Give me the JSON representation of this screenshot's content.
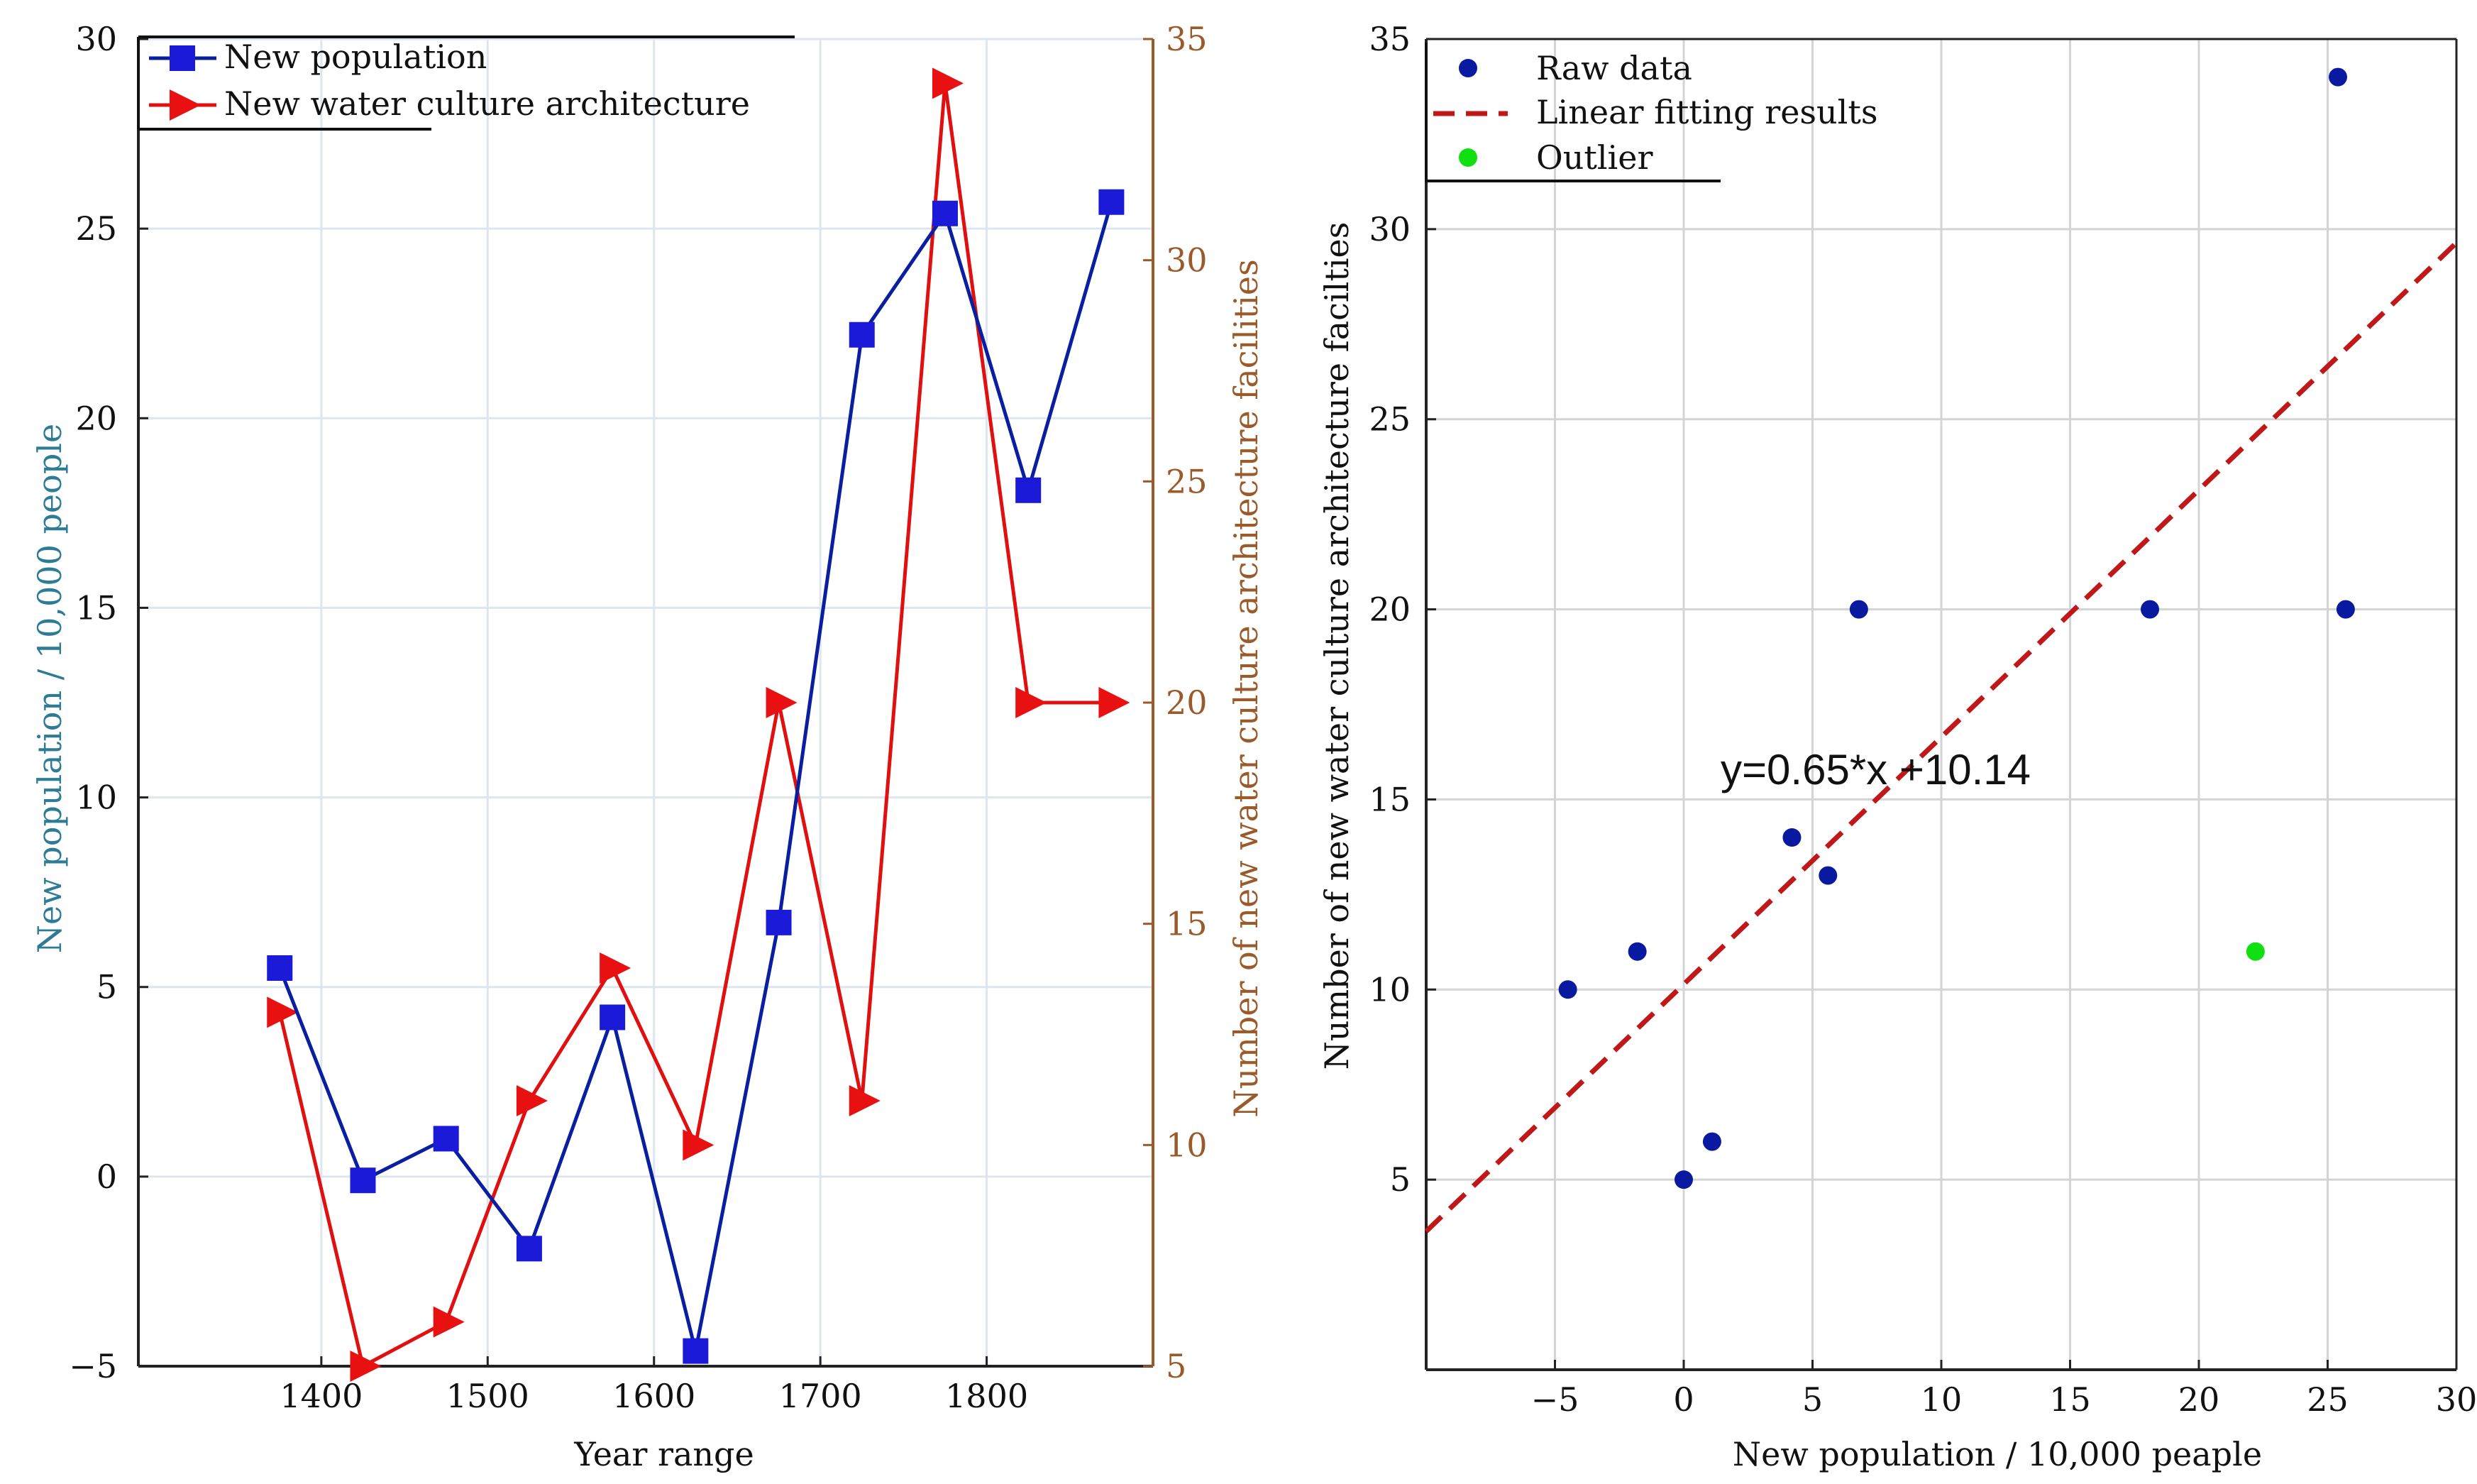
{
  "chart_data": [
    {
      "type": "line",
      "x": [
        1375,
        1425,
        1475,
        1525,
        1575,
        1625,
        1675,
        1725,
        1775,
        1825,
        1875
      ],
      "series": [
        {
          "name": "New population",
          "axis": "left",
          "marker": "square",
          "color": "#0a1ea0",
          "marker_color": "#1a1ad8",
          "values": [
            5.5,
            -0.1,
            1.0,
            -1.9,
            4.2,
            -4.6,
            6.7,
            22.2,
            25.4,
            18.1,
            25.7
          ]
        },
        {
          "name": "New water culture architecture",
          "axis": "right",
          "marker": "triangle-right",
          "color": "#e01010",
          "marker_color": "#e81010",
          "values": [
            13,
            5,
            6,
            11,
            14,
            10,
            20,
            11,
            34,
            20,
            20
          ]
        }
      ],
      "xlabel": "Year range",
      "ylabel_left": "New population / 10,000 people",
      "ylabel_right": "Number of new water culture architecture facilities",
      "xlim": [
        1290,
        1900
      ],
      "ylim_left": [
        -5,
        30
      ],
      "ylim_right": [
        5,
        35
      ],
      "xticks": [
        1400,
        1500,
        1600,
        1700,
        1800
      ],
      "xtick_labels": [
        "1400",
        "1500",
        "1600",
        "1700",
        "1800"
      ],
      "yticks_left": [
        -5,
        0,
        5,
        10,
        15,
        20,
        25,
        30
      ],
      "yticks_left_labels": [
        "−5",
        "0",
        "5",
        "10",
        "15",
        "20",
        "25",
        "30"
      ],
      "yticks_right": [
        5,
        10,
        15,
        20,
        25,
        30,
        35
      ],
      "yticks_right_labels": [
        "5",
        "10",
        "15",
        "20",
        "25",
        "30",
        "35"
      ],
      "grid": true,
      "legend": "top-left",
      "colors": {
        "left_axis_label": "#2e7b96",
        "right_axis": "#9a5a2a",
        "grid": "#dde6ee"
      }
    },
    {
      "type": "scatter",
      "series": [
        {
          "name": "Raw data",
          "color": "#0a1aa0",
          "x": [
            -4.5,
            -1.8,
            0.0,
            1.1,
            4.2,
            5.6,
            6.8,
            18.1,
            25.4,
            25.7
          ],
          "y": [
            10,
            11,
            5,
            6,
            14,
            13,
            20,
            20,
            34,
            20
          ]
        },
        {
          "name": "Outlier",
          "color": "#10e010",
          "x": [
            22.2
          ],
          "y": [
            11
          ]
        }
      ],
      "fit": {
        "name": "Linear fitting results",
        "slope": 0.65,
        "intercept": 10.14,
        "color": "#c01818",
        "equation": "y=0.65*x +10.14"
      },
      "xlabel": "New population / 10,000 peaple",
      "ylabel": "Number of new water culture architecture facilties",
      "xlim": [
        -10,
        30
      ],
      "ylim": [
        0,
        35
      ],
      "xticks": [
        -5,
        0,
        5,
        10,
        15,
        20,
        25,
        30
      ],
      "xtick_labels": [
        "−5",
        "0",
        "5",
        "10",
        "15",
        "20",
        "25",
        "30"
      ],
      "yticks": [
        5,
        10,
        15,
        20,
        25,
        30,
        35
      ],
      "ytick_labels": [
        "5",
        "10",
        "15",
        "20",
        "25",
        "30",
        "35"
      ],
      "grid": true,
      "legend": "top-left"
    }
  ]
}
